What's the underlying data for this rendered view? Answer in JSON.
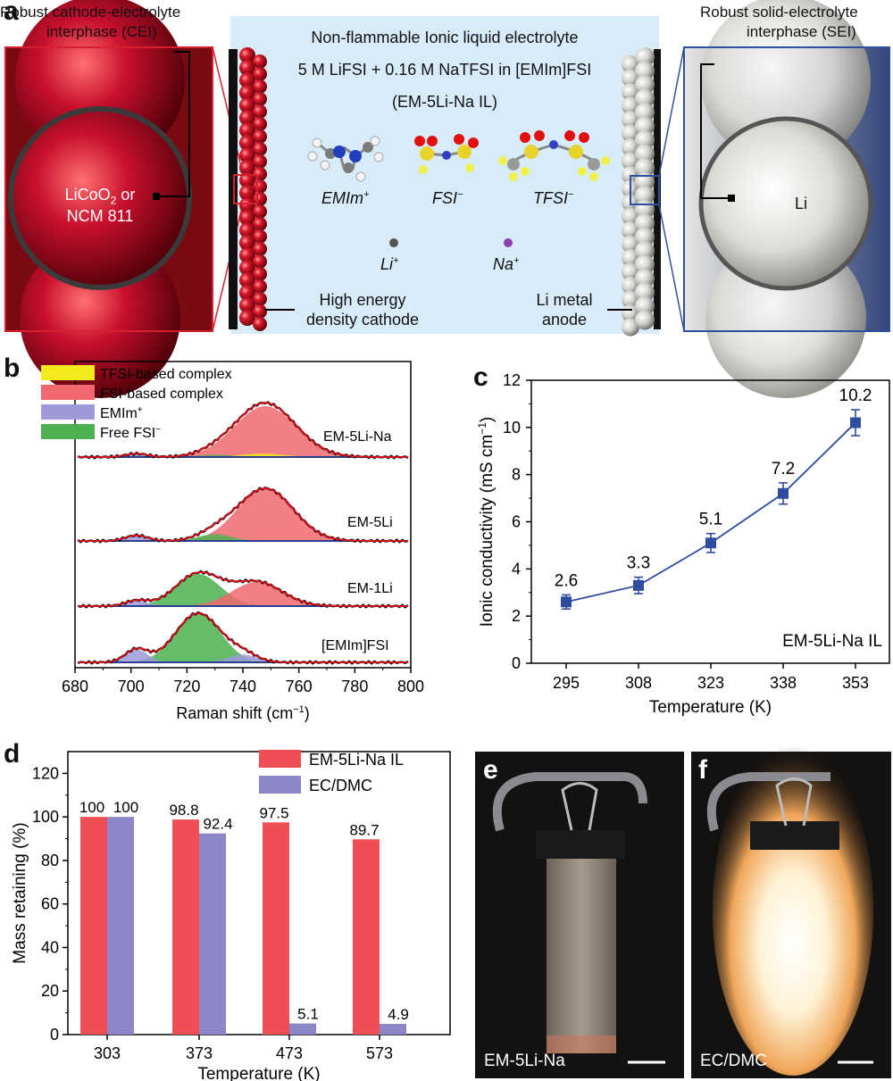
{
  "panel_labels": {
    "a": "a",
    "b": "b",
    "c": "c",
    "d": "d",
    "e": "e",
    "f": "f"
  },
  "panel_a": {
    "cei_label_line1": "Robust cathode-electrolyte",
    "cei_label_line2": "interphase (CEI)",
    "sei_label_line1": "Robust solid-electrolyte",
    "sei_label_line2": "interphase (SEI)",
    "electrolyte_title": "Non-flammable Ionic liquid electrolyte",
    "electrolyte_formula": "5 M LiFSI + 0.16 M NaTFSI in [EMIm]FSI",
    "electrolyte_name": "(EM-5Li-Na IL)",
    "cathode_particle_line1": "LiCoO",
    "cathode_particle_sub": "2",
    "cathode_particle_line1_suffix": " or",
    "cathode_particle_line2": "NCM 811",
    "anode_particle": "Li",
    "molecules": [
      {
        "base": "EMIm",
        "sup": "+"
      },
      {
        "base": "FSI",
        "sup": "−"
      },
      {
        "base": "TFSI",
        "sup": "−"
      }
    ],
    "ions": [
      {
        "base": "Li",
        "sup": "+",
        "color": "#555555"
      },
      {
        "base": "Na",
        "sup": "+",
        "color": "#8e3fb0"
      }
    ],
    "cathode_caption_line1": "High energy",
    "cathode_caption_line2": "density cathode",
    "anode_caption_line1": "Li metal",
    "anode_caption_line2": "anode",
    "colors": {
      "electrolyte_bg": "#d7ecf8",
      "cathode_red": "#c8102e",
      "cathode_frame": "#d62030",
      "anode_frame": "#2f4f9e"
    }
  },
  "chart_data": [
    {
      "panel": "b",
      "type": "area",
      "xlabel": "Raman shift (cm",
      "xlabel_sup": "−1",
      "xlabel_suffix": ")",
      "xlim": [
        680,
        800
      ],
      "x_ticks": [
        680,
        700,
        720,
        740,
        760,
        780,
        800
      ],
      "legend": [
        {
          "name": "TFSI-based complex",
          "color": "#f2ea1b"
        },
        {
          "name": "FSI-based complex",
          "color": "#f0686e"
        },
        {
          "name": "EMIm",
          "sup": "+",
          "color": "#9e9ad8"
        },
        {
          "name": "Free FSI",
          "sup": "−",
          "color": "#4cb050"
        }
      ],
      "spectra": [
        {
          "name": "EM-5Li-Na",
          "peaks": [
            {
              "component": "FSI-based complex",
              "center": 748,
              "height": 0.92,
              "width": 11
            },
            {
              "component": "TFSI-based complex",
              "center": 747,
              "height": 0.06,
              "width": 8
            },
            {
              "component": "EMIm",
              "center": 702,
              "height": 0.06,
              "width": 4
            },
            {
              "component": "Free FSI",
              "center": 730,
              "height": 0.04,
              "width": 6
            }
          ]
        },
        {
          "name": "EM-5Li",
          "peaks": [
            {
              "component": "FSI-based complex",
              "center": 748,
              "height": 0.95,
              "width": 10
            },
            {
              "component": "EMIm",
              "center": 702,
              "height": 0.1,
              "width": 4
            },
            {
              "component": "Free FSI",
              "center": 730,
              "height": 0.12,
              "width": 6
            }
          ]
        },
        {
          "name": "EM-1Li",
          "peaks": [
            {
              "component": "Free FSI",
              "center": 724,
              "height": 0.6,
              "width": 8
            },
            {
              "component": "FSI-based complex",
              "center": 745,
              "height": 0.45,
              "width": 9
            },
            {
              "component": "EMIm",
              "center": 702,
              "height": 0.1,
              "width": 4
            }
          ]
        },
        {
          "name": "[EMIm]FSI",
          "peaks": [
            {
              "component": "Free FSI",
              "center": 724,
              "height": 0.95,
              "width": 8
            },
            {
              "component": "EMIm",
              "center": 702,
              "height": 0.25,
              "width": 4
            },
            {
              "component": "EMIm",
              "center": 740,
              "height": 0.15,
              "width": 5
            }
          ]
        }
      ]
    },
    {
      "panel": "c",
      "type": "line",
      "xlabel": "Temperature (K)",
      "ylabel": "Ionic conductivity (mS cm",
      "ylabel_sup": "−1",
      "ylabel_suffix": ")",
      "annotation": "EM-5Li-Na IL",
      "categories": [
        "295",
        "308",
        "323",
        "338",
        "353"
      ],
      "values": [
        2.6,
        3.3,
        5.1,
        7.2,
        10.2
      ],
      "value_labels": [
        "2.6",
        "3.3",
        "5.1",
        "7.2",
        "10.2"
      ],
      "error": [
        0.3,
        0.35,
        0.4,
        0.45,
        0.55
      ],
      "ylim": [
        0,
        12
      ],
      "y_ticks": [
        "0",
        "2",
        "4",
        "6",
        "8",
        "10",
        "12"
      ],
      "color": "#2f4da0"
    },
    {
      "panel": "d",
      "type": "bar",
      "xlabel": "Temperature (K)",
      "ylabel": "Mass retaining (%)",
      "categories": [
        "303",
        "373",
        "473",
        "573"
      ],
      "ylim": [
        0,
        130
      ],
      "y_ticks": [
        "0",
        "20",
        "40",
        "60",
        "80",
        "100",
        "120"
      ],
      "series": [
        {
          "name": "EM-5Li-Na IL",
          "color": "#f04e55",
          "values": [
            100,
            98.8,
            97.5,
            89.7
          ],
          "labels": [
            "100",
            "98.8",
            "97.5",
            "89.7"
          ]
        },
        {
          "name": "EC/DMC",
          "color": "#8a86c8",
          "values": [
            100,
            92.4,
            5.1,
            4.9
          ],
          "labels": [
            "100",
            "92.4",
            "5.1",
            "4.9"
          ]
        }
      ]
    }
  ],
  "panel_e": {
    "caption": "EM-5Li-Na"
  },
  "panel_f": {
    "caption": "EC/DMC"
  }
}
